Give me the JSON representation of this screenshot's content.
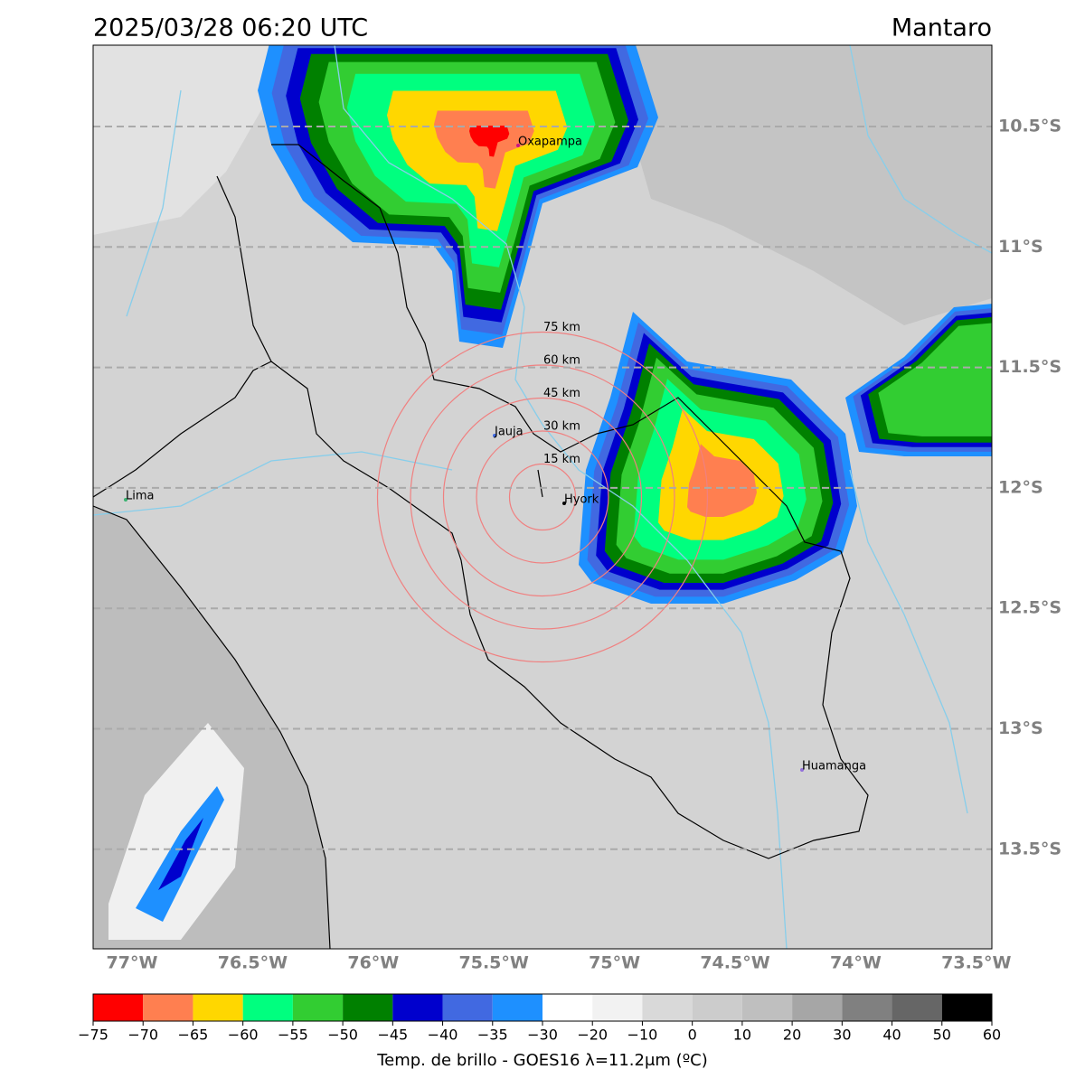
{
  "header": {
    "title": "2025/03/28 06:20 UTC",
    "region": "Mantaro"
  },
  "lat_labels": [
    "10.5°S",
    "11°S",
    "11.5°S",
    "12°S",
    "12.5°S",
    "13°S",
    "13.5°S"
  ],
  "lon_labels": [
    "77°W",
    "76.5°W",
    "76°W",
    "75.5°W",
    "75°W",
    "74.5°W",
    "74°W",
    "73.5°W"
  ],
  "cities": [
    "Oxapampa",
    "Jauja",
    "Hyork",
    "Lima",
    "Huamanga"
  ],
  "rings": [
    "15 km",
    "30 km",
    "45 km",
    "60 km",
    "75 km"
  ],
  "colorbar": {
    "label": "Temp. de brillo - GOES16 λ=11.2μm (ºC)",
    "ticks": [
      "−75",
      "−70",
      "−65",
      "−60",
      "−55",
      "−50",
      "−45",
      "−40",
      "−35",
      "−30",
      "−20",
      "−10",
      "0",
      "10",
      "20",
      "30",
      "40",
      "50",
      "60"
    ],
    "colors": [
      "#ff0000",
      "#ff7f50",
      "#ffd700",
      "#00ff7f",
      "#32cd32",
      "#008000",
      "#0000cd",
      "#4169e1",
      "#1e90ff",
      "#ffffff",
      "#f2f2f2",
      "#d9d9d9",
      "#cccccc",
      "#bfbfbf",
      "#a6a6a6",
      "#808080",
      "#666666",
      "#000000"
    ]
  }
}
